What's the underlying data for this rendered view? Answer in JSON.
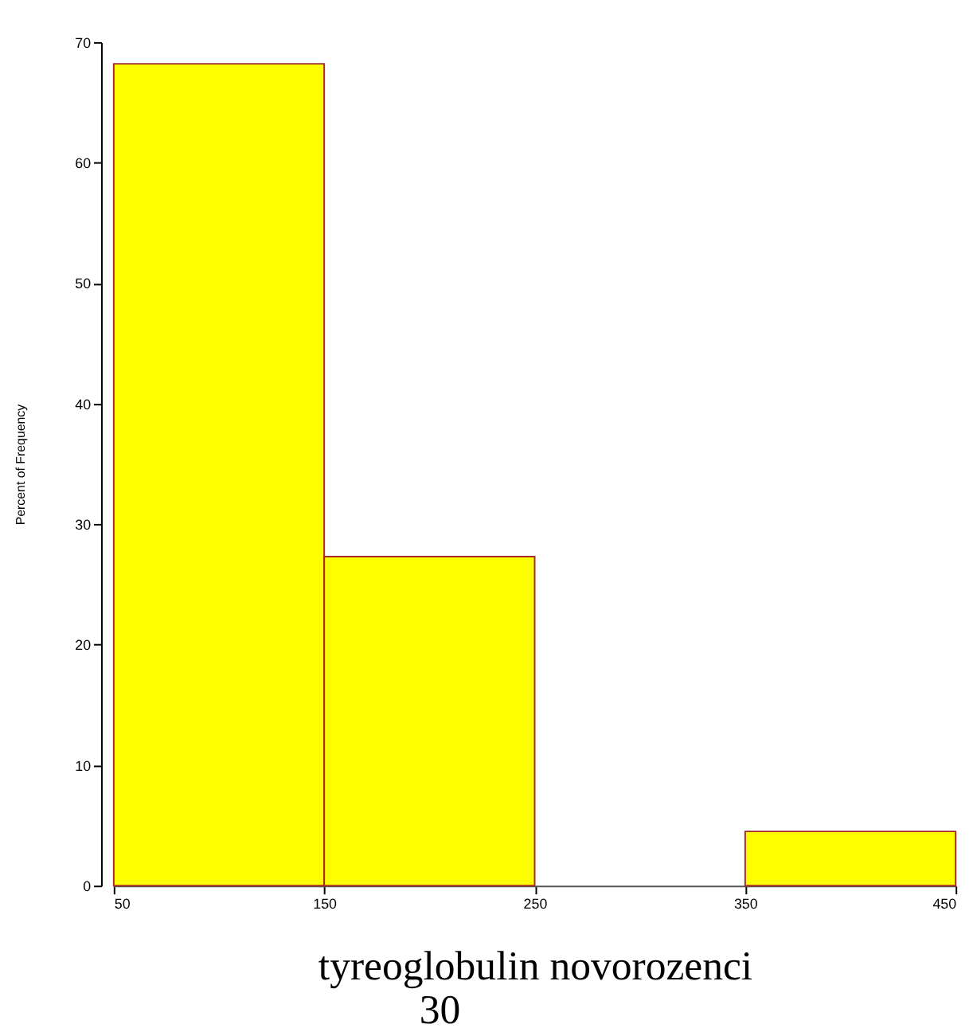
{
  "chart_data": {
    "type": "histogram",
    "xlabel": "tyreoglobulin  novorozenci",
    "ylabel": "Percent of Frequency",
    "bins": [
      50,
      150,
      250,
      350,
      450
    ],
    "values": [
      68.2,
      27.3,
      0,
      4.5
    ],
    "color": "#ffff00",
    "xlim": [
      50,
      450
    ],
    "xticks": [
      50,
      150,
      250,
      350,
      450
    ],
    "ylim": [
      0,
      70
    ],
    "yticks": [
      0,
      10,
      20,
      30,
      40,
      50,
      60,
      70
    ],
    "grid": false,
    "annotations": [
      "30"
    ]
  }
}
